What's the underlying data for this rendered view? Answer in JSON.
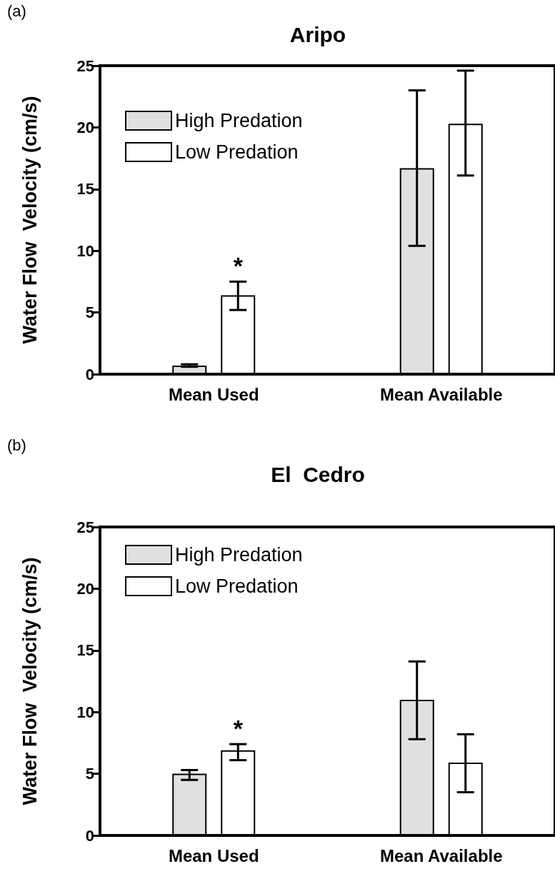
{
  "chart_data": [
    {
      "type": "bar",
      "title": "Aripo",
      "ylabel": "Water Flow  Velocity (cm/s)",
      "categories": [
        "Mean Used",
        "Mean Available"
      ],
      "series": [
        {
          "name": "High Predation",
          "color": "#e0e0e0",
          "values": [
            0.7,
            16.7
          ],
          "errors": [
            [
              0.6,
              0.8
            ],
            [
              10.4,
              23.0
            ]
          ]
        },
        {
          "name": "Low Predation",
          "color": "#ffffff",
          "values": [
            6.4,
            20.3
          ],
          "errors": [
            [
              5.2,
              7.5
            ],
            [
              16.1,
              24.6
            ]
          ],
          "value_labels": [
            "*",
            null
          ]
        }
      ],
      "ylim": [
        0,
        25
      ],
      "yticks": [
        0,
        5,
        10,
        15,
        20,
        25
      ],
      "legend": "top left",
      "annotations": [
        "(a)"
      ]
    },
    {
      "type": "bar",
      "title": "El  Cedro",
      "ylabel": "Water Flow  Velocity (cm/s)",
      "categories": [
        "Mean Used",
        "Mean Available"
      ],
      "series": [
        {
          "name": "High Predation",
          "color": "#e0e0e0",
          "values": [
            5.0,
            11.0
          ],
          "errors": [
            [
              4.5,
              5.3
            ],
            [
              7.8,
              14.1
            ]
          ]
        },
        {
          "name": "Low Predation",
          "color": "#ffffff",
          "values": [
            6.9,
            5.9
          ],
          "errors": [
            [
              6.1,
              7.4
            ],
            [
              3.5,
              8.2
            ]
          ],
          "value_labels": [
            "*",
            null
          ]
        }
      ],
      "ylim": [
        0,
        25
      ],
      "yticks": [
        0,
        5,
        10,
        15,
        20,
        25
      ],
      "legend": "top left",
      "annotations": [
        "(b)"
      ]
    }
  ]
}
